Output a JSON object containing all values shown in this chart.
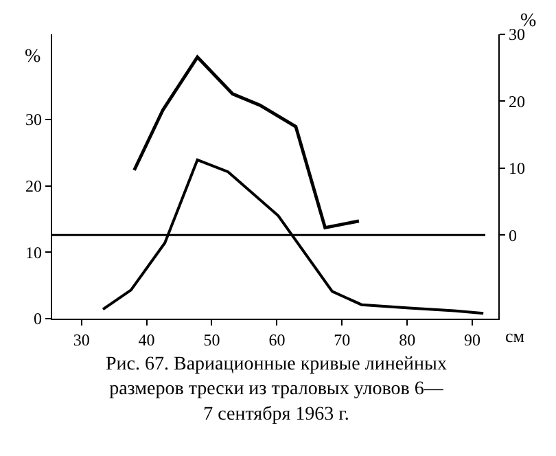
{
  "chart_data": {
    "type": "line",
    "xlabel": "см",
    "ylabel": "%",
    "y2label": "%",
    "series": [
      {
        "color": "#000000",
        "x": [
          33.3,
          37.6,
          42.8,
          47.8,
          52.5,
          60.2,
          68.5,
          73.0,
          80.3,
          87.2,
          91.7
        ],
        "values": [
          1.4,
          4.3,
          11.4,
          23.9,
          22.1,
          15.5,
          4.1,
          2.1,
          1.6,
          1.2,
          0.8
        ]
      },
      {
        "color": "#000000",
        "axis": "y2",
        "x": [
          38.1,
          42.5,
          47.8,
          53.2,
          57.4,
          62.9,
          67.4,
          72.6
        ],
        "values": [
          9.7,
          18.7,
          26.6,
          21.1,
          19.4,
          16.2,
          1.1,
          2.1
        ]
      }
    ],
    "xlim": [
      25.5,
      94
    ],
    "xticks": [
      30,
      40,
      50,
      60,
      70,
      80,
      90
    ],
    "ylim": [
      0,
      42.8
    ],
    "yticks": [
      0,
      10,
      20,
      30
    ],
    "y2lim": [
      -12.5,
      30
    ],
    "y2ticks": [
      0,
      10,
      20,
      30
    ],
    "ref_lines": [
      {
        "axis": "y2",
        "value": 0,
        "color": "#000000"
      }
    ],
    "annotations": [
      "Рис. 67. Вариационные кривые линейных\nразмеров трески из траловых уловов 6—\n7 сентября 1963 г."
    ],
    "grid": false,
    "marker": "none",
    "line_style": "solid"
  }
}
